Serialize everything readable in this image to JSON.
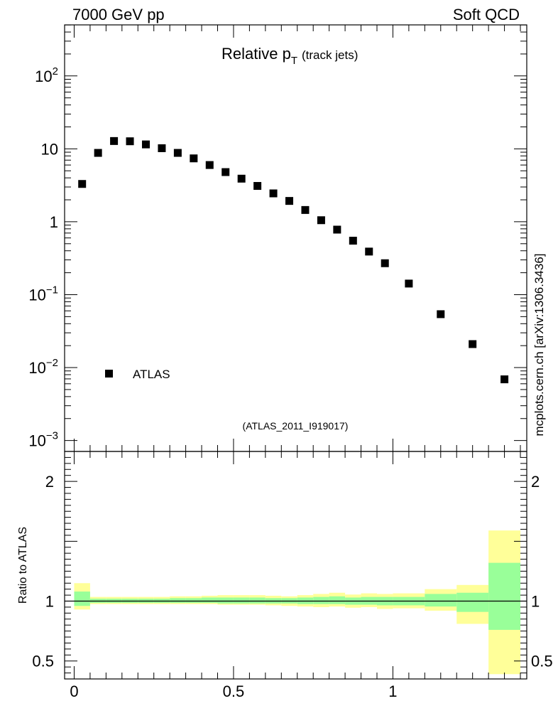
{
  "header": {
    "left": "7000 GeV pp",
    "right": "Soft QCD"
  },
  "side_label": "mcplots.cern.ch [arXiv:1306.3436]",
  "chart_data": [
    {
      "type": "scatter",
      "name": "main-panel",
      "title": "Relative p",
      "title_sub": "T",
      "title_suffix": "(track jets)",
      "yscale": "log",
      "xlim": [
        -0.03,
        1.42
      ],
      "ylim_log10": [
        -3.15,
        2.7
      ],
      "ytick_labels": [
        {
          "base": "10",
          "exp": "2",
          "value": 100
        },
        {
          "base": "10",
          "exp": "",
          "value": 10
        },
        {
          "base": "1",
          "exp": "",
          "value": 1
        },
        {
          "base": "10",
          "exp": "−1",
          "value": 0.1
        },
        {
          "base": "10",
          "exp": "−2",
          "value": 0.01
        },
        {
          "base": "10",
          "exp": "−3",
          "value": 0.001
        }
      ],
      "series": [
        {
          "name": "ATLAS",
          "marker": "square",
          "x": [
            0.025,
            0.075,
            0.125,
            0.175,
            0.225,
            0.275,
            0.325,
            0.375,
            0.425,
            0.475,
            0.525,
            0.575,
            0.625,
            0.675,
            0.725,
            0.775,
            0.825,
            0.875,
            0.925,
            0.975,
            1.05,
            1.15,
            1.25,
            1.35
          ],
          "y": [
            3.3,
            8.8,
            12.8,
            12.7,
            11.5,
            10.2,
            8.8,
            7.4,
            6.0,
            4.8,
            3.9,
            3.1,
            2.45,
            1.93,
            1.45,
            1.05,
            0.78,
            0.55,
            0.39,
            0.27,
            0.142,
            0.054,
            0.021,
            0.0069
          ]
        }
      ],
      "legend": {
        "entry": "ATLAS",
        "position": "bottom-left"
      },
      "annotation": "(ATLAS_2011_I919017)"
    },
    {
      "type": "area",
      "name": "ratio-panel",
      "ylabel": "Ratio to ATLAS",
      "xlim": [
        -0.03,
        1.42
      ],
      "ylim": [
        0.35,
        2.25
      ],
      "xtick_labels": [
        {
          "label": "0",
          "value": 0
        },
        {
          "label": "0.5",
          "value": 0.5
        },
        {
          "label": "1",
          "value": 1
        }
      ],
      "ytick_labels": [
        {
          "label": "2",
          "value": 2
        },
        {
          "label": "1",
          "value": 1
        },
        {
          "label": "0.5",
          "value": 0.5
        }
      ],
      "reference_line": 1,
      "bins": [
        {
          "lo": 0.0,
          "hi": 0.05,
          "yellow": [
            0.93,
            1.15
          ],
          "green": [
            0.96,
            1.08
          ]
        },
        {
          "lo": 0.05,
          "hi": 0.1,
          "yellow": [
            0.975,
            1.035
          ],
          "green": [
            0.985,
            1.02
          ]
        },
        {
          "lo": 0.1,
          "hi": 0.15,
          "yellow": [
            0.975,
            1.035
          ],
          "green": [
            0.985,
            1.02
          ]
        },
        {
          "lo": 0.15,
          "hi": 0.2,
          "yellow": [
            0.975,
            1.035
          ],
          "green": [
            0.985,
            1.02
          ]
        },
        {
          "lo": 0.2,
          "hi": 0.25,
          "yellow": [
            0.975,
            1.035
          ],
          "green": [
            0.985,
            1.02
          ]
        },
        {
          "lo": 0.25,
          "hi": 0.3,
          "yellow": [
            0.975,
            1.035
          ],
          "green": [
            0.985,
            1.02
          ]
        },
        {
          "lo": 0.3,
          "hi": 0.35,
          "yellow": [
            0.975,
            1.04
          ],
          "green": [
            0.985,
            1.025
          ]
        },
        {
          "lo": 0.35,
          "hi": 0.4,
          "yellow": [
            0.975,
            1.04
          ],
          "green": [
            0.985,
            1.025
          ]
        },
        {
          "lo": 0.4,
          "hi": 0.45,
          "yellow": [
            0.975,
            1.045
          ],
          "green": [
            0.985,
            1.03
          ]
        },
        {
          "lo": 0.45,
          "hi": 0.5,
          "yellow": [
            0.97,
            1.05
          ],
          "green": [
            0.98,
            1.03
          ]
        },
        {
          "lo": 0.5,
          "hi": 0.55,
          "yellow": [
            0.97,
            1.05
          ],
          "green": [
            0.98,
            1.03
          ]
        },
        {
          "lo": 0.55,
          "hi": 0.6,
          "yellow": [
            0.97,
            1.05
          ],
          "green": [
            0.98,
            1.03
          ]
        },
        {
          "lo": 0.6,
          "hi": 0.65,
          "yellow": [
            0.965,
            1.045
          ],
          "green": [
            0.98,
            1.025
          ]
        },
        {
          "lo": 0.65,
          "hi": 0.7,
          "yellow": [
            0.96,
            1.04
          ],
          "green": [
            0.98,
            1.025
          ]
        },
        {
          "lo": 0.7,
          "hi": 0.75,
          "yellow": [
            0.955,
            1.05
          ],
          "green": [
            0.975,
            1.03
          ]
        },
        {
          "lo": 0.75,
          "hi": 0.8,
          "yellow": [
            0.95,
            1.06
          ],
          "green": [
            0.975,
            1.035
          ]
        },
        {
          "lo": 0.8,
          "hi": 0.85,
          "yellow": [
            0.955,
            1.07
          ],
          "green": [
            0.975,
            1.04
          ]
        },
        {
          "lo": 0.85,
          "hi": 0.9,
          "yellow": [
            0.945,
            1.055
          ],
          "green": [
            0.97,
            1.03
          ]
        },
        {
          "lo": 0.9,
          "hi": 0.95,
          "yellow": [
            0.95,
            1.065
          ],
          "green": [
            0.97,
            1.035
          ]
        },
        {
          "lo": 0.95,
          "hi": 1.0,
          "yellow": [
            0.935,
            1.06
          ],
          "green": [
            0.965,
            1.035
          ]
        },
        {
          "lo": 1.0,
          "hi": 1.1,
          "yellow": [
            0.94,
            1.065
          ],
          "green": [
            0.965,
            1.035
          ]
        },
        {
          "lo": 1.1,
          "hi": 1.2,
          "yellow": [
            0.92,
            1.1
          ],
          "green": [
            0.955,
            1.06
          ]
        },
        {
          "lo": 1.2,
          "hi": 1.3,
          "yellow": [
            0.81,
            1.135
          ],
          "green": [
            0.91,
            1.07
          ]
        },
        {
          "lo": 1.3,
          "hi": 1.4,
          "yellow": [
            0.39,
            1.59
          ],
          "green": [
            0.76,
            1.32
          ]
        }
      ]
    }
  ],
  "colors": {
    "yellow_band": "#ffff99",
    "green_band": "#99ff99",
    "marker": "#000000",
    "annotation": "#999999",
    "side_label": "#666666"
  }
}
